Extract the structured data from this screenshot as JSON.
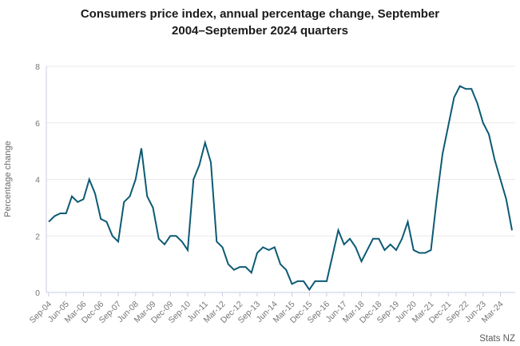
{
  "chart_data": {
    "type": "line",
    "title": "Consumers price index, annual percentage change, September 2004–September 2024 quarters",
    "title_line1": "Consumers price index, annual percentage change, September",
    "title_line2": "2004–September 2024 quarters",
    "ylabel": "Percentage change",
    "xlabel": "",
    "source": "Stats NZ",
    "series_name": "CPI annual percentage change",
    "ylim": [
      0,
      8
    ],
    "y_ticks": [
      0,
      2,
      4,
      6,
      8
    ],
    "x_tick_every": 3,
    "grid": "horizontal",
    "legend": "none",
    "categories": [
      "Sep-04",
      "Dec-04",
      "Mar-05",
      "Jun-05",
      "Sep-05",
      "Dec-05",
      "Mar-06",
      "Jun-06",
      "Sep-06",
      "Dec-06",
      "Mar-07",
      "Jun-07",
      "Sep-07",
      "Dec-07",
      "Mar-08",
      "Jun-08",
      "Sep-08",
      "Dec-08",
      "Mar-09",
      "Jun-09",
      "Sep-09",
      "Dec-09",
      "Mar-10",
      "Jun-10",
      "Sep-10",
      "Dec-10",
      "Mar-11",
      "Jun-11",
      "Sep-11",
      "Dec-11",
      "Mar-12",
      "Jun-12",
      "Sep-12",
      "Dec-12",
      "Mar-13",
      "Jun-13",
      "Sep-13",
      "Dec-13",
      "Mar-14",
      "Jun-14",
      "Sep-14",
      "Dec-14",
      "Mar-15",
      "Jun-15",
      "Sep-15",
      "Dec-15",
      "Mar-16",
      "Jun-16",
      "Sep-16",
      "Dec-16",
      "Mar-17",
      "Jun-17",
      "Sep-17",
      "Dec-17",
      "Mar-18",
      "Jun-18",
      "Sep-18",
      "Dec-18",
      "Mar-19",
      "Jun-19",
      "Sep-19",
      "Dec-19",
      "Mar-20",
      "Jun-20",
      "Sep-20",
      "Dec-20",
      "Mar-21",
      "Jun-21",
      "Sep-21",
      "Dec-21",
      "Mar-22",
      "Jun-22",
      "Sep-22",
      "Dec-22",
      "Mar-23",
      "Jun-23",
      "Sep-23",
      "Dec-23",
      "Mar-24",
      "Jun-24",
      "Sep-24"
    ],
    "values": [
      2.5,
      2.7,
      2.8,
      2.8,
      3.4,
      3.2,
      3.3,
      4.0,
      3.5,
      2.6,
      2.5,
      2.0,
      1.8,
      3.2,
      3.4,
      4.0,
      5.1,
      3.4,
      3.0,
      1.9,
      1.7,
      2.0,
      2.0,
      1.8,
      1.5,
      4.0,
      4.5,
      5.3,
      4.6,
      1.8,
      1.6,
      1.0,
      0.8,
      0.9,
      0.9,
      0.7,
      1.4,
      1.6,
      1.5,
      1.6,
      1.0,
      0.8,
      0.3,
      0.4,
      0.4,
      0.1,
      0.4,
      0.4,
      0.4,
      1.3,
      2.2,
      1.7,
      1.9,
      1.6,
      1.1,
      1.5,
      1.9,
      1.9,
      1.5,
      1.7,
      1.5,
      1.9,
      2.5,
      1.5,
      1.4,
      1.4,
      1.5,
      3.3,
      4.9,
      5.9,
      6.9,
      7.3,
      7.2,
      7.2,
      6.7,
      6.0,
      5.6,
      4.7,
      4.0,
      3.3,
      2.2
    ],
    "colors": {
      "line": "#0d5a74",
      "grid": "#e9e9e9",
      "axis": "#c7cee3",
      "tick_label": "#757575",
      "title": "#1a1a1a",
      "source": "#5a5a5a",
      "background": "#ffffff"
    }
  }
}
